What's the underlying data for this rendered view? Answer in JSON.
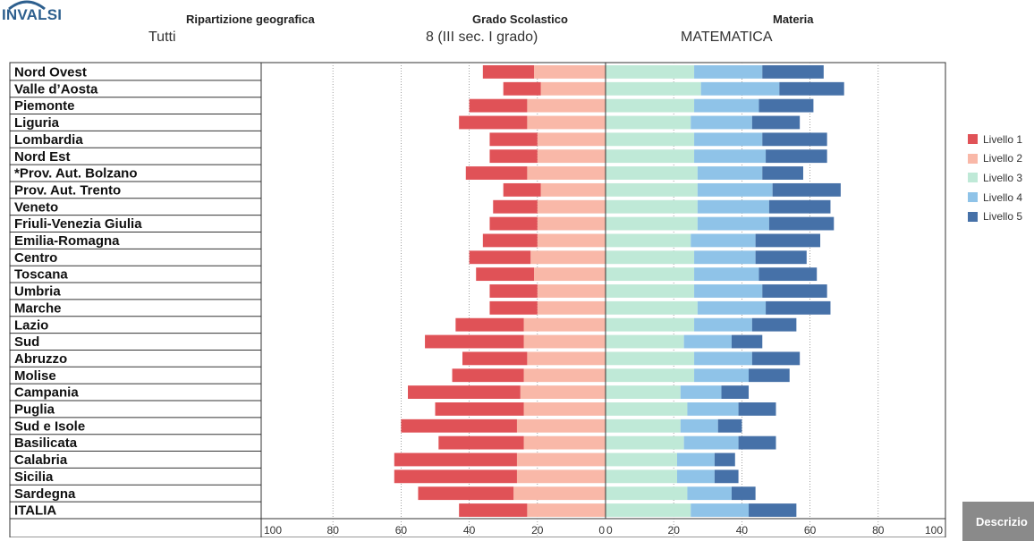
{
  "logo": {
    "text": "INVALSI"
  },
  "filters": {
    "geo": {
      "label": "Ripartizione geografica",
      "value": "Tutti"
    },
    "grado": {
      "label": "Grado Scolastico",
      "value": "8 (III sec. I grado)"
    },
    "materia": {
      "label": "Materia",
      "value": "MATEMATICA"
    }
  },
  "description_button": {
    "label": "Descrizio"
  },
  "colors": {
    "livello1": "#e05257",
    "livello2": "#f9b8a8",
    "livello3": "#bfe9d7",
    "livello4": "#8fc3e8",
    "livello5": "#4671a8"
  },
  "chart_data": {
    "type": "bar",
    "orientation": "horizontal-diverging",
    "categories": [
      "Nord Ovest",
      "Valle d’Aosta",
      "Piemonte",
      "Liguria",
      "Lombardia",
      "Nord Est",
      "*Prov. Aut. Bolzano",
      "Prov. Aut. Trento",
      "Veneto",
      "Friuli-Venezia Giulia",
      "Emilia-Romagna",
      "Centro",
      "Toscana",
      "Umbria",
      "Marche",
      "Lazio",
      "Sud",
      "Abruzzo",
      "Molise",
      "Campania",
      "Puglia",
      "Sud e Isole",
      "Basilicata",
      "Calabria",
      "Sicilia",
      "Sardegna",
      "ITALIA"
    ],
    "series": [
      {
        "name": "Livello 1",
        "values": [
          15,
          11,
          17,
          20,
          14,
          14,
          18,
          11,
          13,
          14,
          16,
          18,
          17,
          14,
          14,
          20,
          29,
          19,
          21,
          33,
          26,
          34,
          25,
          36,
          36,
          28,
          20
        ]
      },
      {
        "name": "Livello 2",
        "values": [
          21,
          19,
          23,
          23,
          20,
          20,
          23,
          19,
          20,
          20,
          20,
          22,
          21,
          20,
          20,
          24,
          24,
          23,
          24,
          25,
          24,
          26,
          24,
          26,
          26,
          27,
          23
        ]
      },
      {
        "name": "Livello 3",
        "values": [
          26,
          28,
          26,
          25,
          26,
          26,
          27,
          27,
          27,
          27,
          25,
          26,
          26,
          26,
          27,
          26,
          23,
          26,
          26,
          22,
          24,
          22,
          23,
          21,
          21,
          24,
          25
        ]
      },
      {
        "name": "Livello 4",
        "values": [
          20,
          23,
          19,
          18,
          20,
          21,
          19,
          22,
          21,
          21,
          19,
          18,
          19,
          20,
          20,
          17,
          14,
          17,
          16,
          12,
          15,
          11,
          16,
          11,
          11,
          13,
          17
        ]
      },
      {
        "name": "Livello 5",
        "values": [
          18,
          19,
          16,
          14,
          19,
          18,
          12,
          20,
          18,
          19,
          19,
          15,
          17,
          19,
          19,
          13,
          9,
          14,
          12,
          8,
          11,
          7,
          11,
          6,
          7,
          7,
          14
        ]
      }
    ],
    "xlim": [
      -100,
      100
    ],
    "x_ticks": [
      "100",
      "80",
      "60",
      "40",
      "20",
      "0",
      "0",
      "20",
      "40",
      "60",
      "80",
      "100"
    ],
    "grid": true,
    "legend": "right"
  }
}
